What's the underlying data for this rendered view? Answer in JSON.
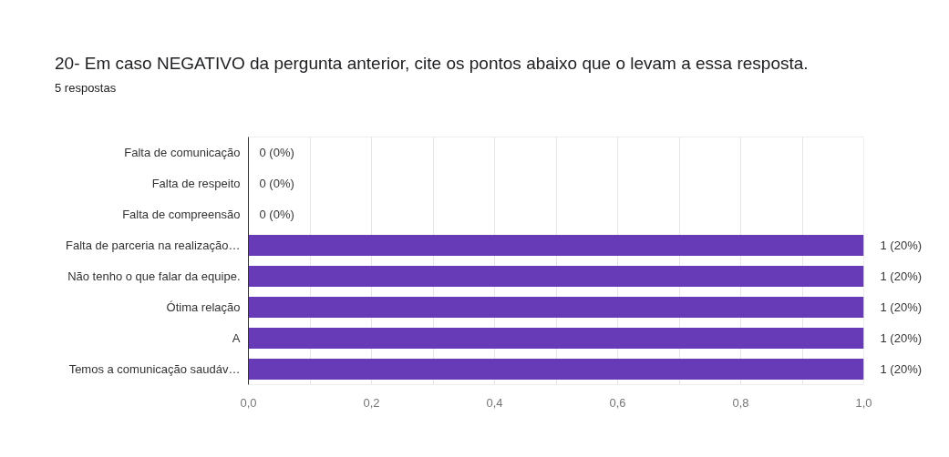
{
  "chart_data": {
    "type": "bar",
    "orientation": "horizontal",
    "title": "20- Em caso NEGATIVO da pergunta anterior, cite os pontos abaixo que o levam a essa resposta.",
    "subtitle": "5 respostas",
    "categories": [
      "Falta de comunicação",
      "Falta de respeito",
      "Falta de compreensão",
      "Falta de parceria na realização…",
      "Não tenho o que falar da equipe.",
      "Ótima relação",
      "A",
      "Temos a comunicação saudáv…"
    ],
    "values": [
      0,
      0,
      0,
      1,
      1,
      1,
      1,
      1
    ],
    "color": "#673ab7",
    "value_labels": [
      "0 (0%)",
      "0 (0%)",
      "0 (0%)",
      "1 (20%)",
      "1 (20%)",
      "1 (20%)",
      "1 (20%)",
      "1 (20%)"
    ],
    "xlim": [
      0,
      1
    ],
    "xticks": [
      {
        "value": 0,
        "label": "0,0"
      },
      {
        "value": 0.1,
        "label": null
      },
      {
        "value": 0.2,
        "label": "0,2"
      },
      {
        "value": 0.3,
        "label": null
      },
      {
        "value": 0.4,
        "label": "0,4"
      },
      {
        "value": 0.5,
        "label": null
      },
      {
        "value": 0.6,
        "label": "0,6"
      },
      {
        "value": 0.7,
        "label": null
      },
      {
        "value": 0.8,
        "label": "0,8"
      },
      {
        "value": 0.9,
        "label": null
      },
      {
        "value": 1,
        "label": "1,0"
      }
    ],
    "grid": "x"
  }
}
